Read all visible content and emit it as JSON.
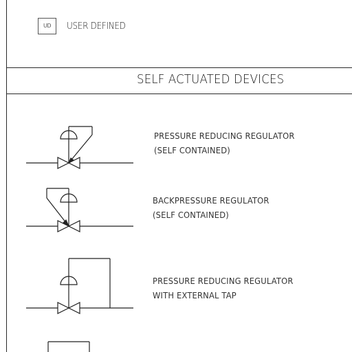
{
  "top_entry": {
    "box_label": "UD",
    "label": "USER DEFINED"
  },
  "section": {
    "title": "SELF ACTUATED DEVICES"
  },
  "devices": [
    {
      "symbol_icon": "pressure-reducing-regulator-icon",
      "line1": "PRESSURE REDUCING REGULATOR",
      "line2": "(SELF CONTAINED)"
    },
    {
      "symbol_icon": "back-pressure-regulator-icon",
      "line1": "BACKPRESSURE REGULATOR",
      "line2": "(SELF CONTAINED)"
    },
    {
      "symbol_icon": "pressure-reducing-regulator-external-tap-icon",
      "line1": "PRESSURE REDUCING REGULATOR",
      "line2": "WITH EXTERNAL TAP"
    }
  ]
}
